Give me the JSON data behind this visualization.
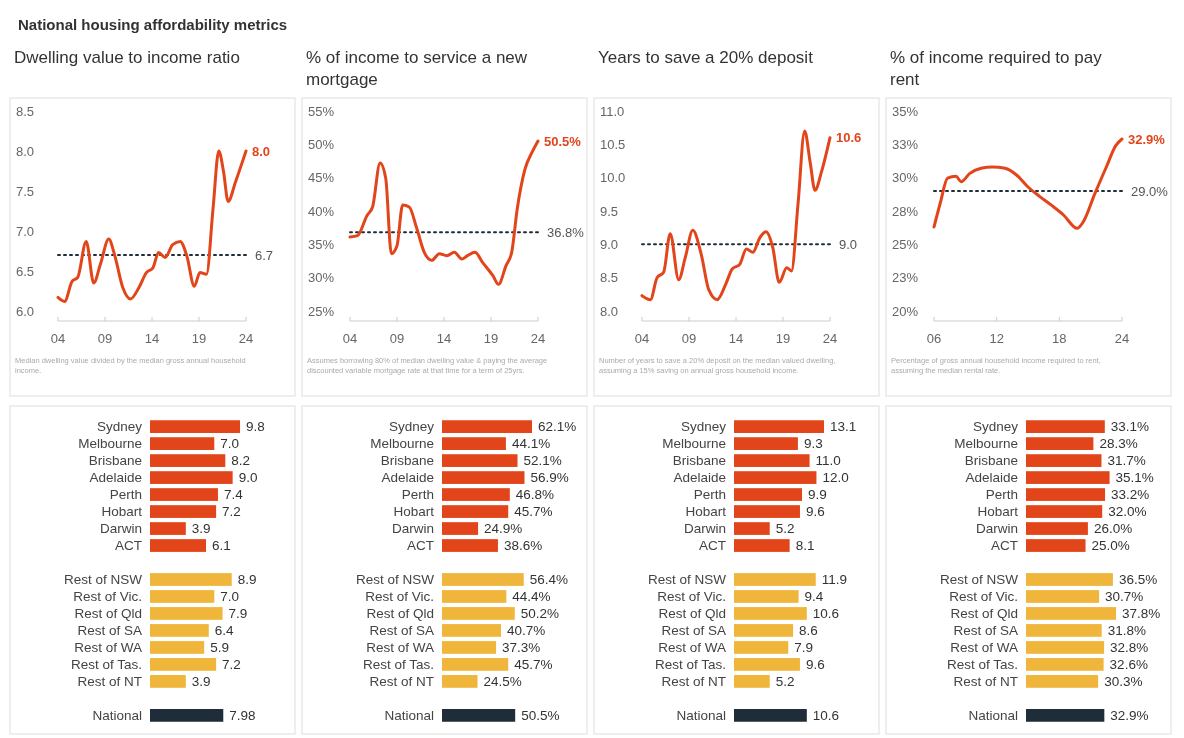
{
  "chart_data": [
    {
      "type": "other",
      "title": "National housing affordability metrics"
    },
    {
      "type": "line",
      "title": "Dwelling value to income ratio",
      "x": [
        2004,
        2004.7,
        2005.5,
        2006.1,
        2007,
        2007.8,
        2008.5,
        2009.4,
        2010,
        2010.9,
        2011.7,
        2012.6,
        2013.4,
        2014.1,
        2014.7,
        2015.4,
        2016.2,
        2017,
        2017.7,
        2018.5,
        2019.1,
        2019.8,
        2020.5,
        2021.1,
        2021.6,
        2022.1,
        2022.9,
        2024
      ],
      "series": [
        {
          "color": "#e3451b",
          "values": [
            6.17,
            6.12,
            6.37,
            6.42,
            6.87,
            6.35,
            6.58,
            6.9,
            6.71,
            6.29,
            6.15,
            6.29,
            6.48,
            6.54,
            6.73,
            6.67,
            6.83,
            6.87,
            6.69,
            6.31,
            6.48,
            6.46,
            7.29,
            8.0,
            7.75,
            7.37,
            7.62,
            8.0
          ]
        }
      ],
      "xlim": [
        2004,
        2024
      ],
      "xticks": [
        {
          "value": 2004,
          "label": "04"
        },
        {
          "value": 2009,
          "label": "09"
        },
        {
          "value": 2014,
          "label": "14"
        },
        {
          "value": 2019,
          "label": "19"
        },
        {
          "value": 2024,
          "label": "24"
        }
      ],
      "ylim": [
        6,
        8.5
      ],
      "yticks": [
        {
          "value": 6,
          "label": "6.0"
        },
        6.5,
        {
          "value": 7,
          "label": "7.0"
        },
        7.5,
        {
          "value": 8,
          "label": "8.0"
        },
        8.5
      ],
      "ref_lines": [
        {
          "axis": "y",
          "value": 6.7,
          "label": "6.7",
          "color": "#1f2d3a",
          "line_style": "dotted"
        }
      ],
      "annotations": [
        "8.0",
        "Median dwelling value divided by the median gross annual household income."
      ]
    },
    {
      "type": "line",
      "title": "% of income to service a new mortgage",
      "x": [
        2004,
        2004.8,
        2005.8,
        2006.4,
        2007.2,
        2007.8,
        2008.4,
        2009,
        2009.6,
        2010.3,
        2011.1,
        2011.9,
        2012.7,
        2013.5,
        2014.3,
        2015.1,
        2015.9,
        2016.5,
        2017.3,
        2018.1,
        2019.2,
        2019.8,
        2020.6,
        2021.2,
        2021.8,
        2022.6,
        2023.4,
        2024
      ],
      "series": [
        {
          "color": "#e3451b",
          "values": [
            36.1,
            36.3,
            39.3,
            40.6,
            47.2,
            44.9,
            33.6,
            34.8,
            40.9,
            40.6,
            37.4,
            33.8,
            32.6,
            33.6,
            33.3,
            33.8,
            32.8,
            33.3,
            33.8,
            32.3,
            30.3,
            29.0,
            31.8,
            33.8,
            40.4,
            46.2,
            48.9,
            50.5
          ]
        }
      ],
      "xlim": [
        2004,
        2024
      ],
      "xticks": [
        {
          "value": 2004,
          "label": "04"
        },
        {
          "value": 2009,
          "label": "09"
        },
        {
          "value": 2014,
          "label": "14"
        },
        {
          "value": 2019,
          "label": "19"
        },
        {
          "value": 2024,
          "label": "24"
        }
      ],
      "ylim": [
        25,
        55
      ],
      "yticks": [
        {
          "value": 25,
          "label": "25%"
        },
        {
          "value": 30,
          "label": "30%"
        },
        {
          "value": 35,
          "label": "35%"
        },
        {
          "value": 40,
          "label": "40%"
        },
        {
          "value": 45,
          "label": "45%"
        },
        {
          "value": 50,
          "label": "50%"
        },
        {
          "value": 55,
          "label": "55%"
        }
      ],
      "ref_lines": [
        {
          "axis": "y",
          "value": 36.8,
          "label": "36.8%",
          "color": "#1f2d3a",
          "line_style": "dotted"
        }
      ],
      "annotations": [
        "50.5%",
        "Assumes borrowing 80% of median dwelling value & paying the average discounted variable mortgage rate at that time for a term of 25yrs."
      ]
    },
    {
      "type": "line",
      "title": "Years to save a 20% deposit",
      "x": [
        2004,
        2004.9,
        2005.6,
        2006.3,
        2007,
        2007.9,
        2008.6,
        2009.4,
        2010.3,
        2011.1,
        2012,
        2012.9,
        2013.6,
        2014.4,
        2015.1,
        2015.8,
        2016.5,
        2017.2,
        2017.9,
        2018.6,
        2019.4,
        2019.9,
        2020.6,
        2021.3,
        2021.9,
        2022.4,
        2023.1,
        2024
      ],
      "series": [
        {
          "color": "#e3451b",
          "values": [
            8.23,
            8.17,
            8.5,
            8.58,
            9.16,
            8.47,
            8.8,
            9.21,
            8.85,
            8.32,
            8.17,
            8.4,
            8.63,
            8.7,
            8.93,
            8.88,
            9.09,
            9.19,
            8.96,
            8.43,
            8.65,
            8.6,
            9.61,
            10.7,
            10.22,
            9.81,
            10.09,
            10.6
          ]
        }
      ],
      "xlim": [
        2004,
        2024
      ],
      "xticks": [
        {
          "value": 2004,
          "label": "04"
        },
        {
          "value": 2009,
          "label": "09"
        },
        {
          "value": 2014,
          "label": "14"
        },
        {
          "value": 2019,
          "label": "19"
        },
        {
          "value": 2024,
          "label": "24"
        }
      ],
      "ylim": [
        8,
        11
      ],
      "yticks": [
        {
          "value": 8,
          "label": "8.0"
        },
        8.5,
        {
          "value": 9,
          "label": "9.0"
        },
        9.5,
        {
          "value": 10,
          "label": "10.0"
        },
        10.5,
        {
          "value": 11,
          "label": "11.0"
        }
      ],
      "ref_lines": [
        {
          "axis": "y",
          "value": 9.0,
          "label": "9.0",
          "color": "#1f2d3a",
          "line_style": "dotted"
        }
      ],
      "annotations": [
        "10.6",
        "Number of years to save a 20% deposit on the median valued dwelling, assuming a 15% saving on annual gross household income."
      ]
    },
    {
      "type": "line",
      "title": "% of income required to pay rent",
      "x": [
        2006,
        2006.6,
        2007.3,
        2008.1,
        2008.6,
        2009.4,
        2010.5,
        2011.6,
        2012.8,
        2013.9,
        2015,
        2016.1,
        2017.3,
        2018.4,
        2019.7,
        2020.3,
        2021.4,
        2022.5,
        2023.4,
        2024
      ],
      "series": [
        {
          "color": "#e3451b",
          "values": [
            26.3,
            28.1,
            29.96,
            30.1,
            29.7,
            30.3,
            30.7,
            30.8,
            30.7,
            30.2,
            29.3,
            28.6,
            27.9,
            27.2,
            26.2,
            26.7,
            28.8,
            30.8,
            32.4,
            32.9
          ]
        }
      ],
      "xlim": [
        2006,
        2024
      ],
      "xticks": [
        {
          "value": 2006,
          "label": "06"
        },
        {
          "value": 2012,
          "label": "12"
        },
        {
          "value": 2018,
          "label": "18"
        },
        {
          "value": 2024,
          "label": "24"
        }
      ],
      "ylim": [
        20,
        35
      ],
      "yticks": [
        {
          "value": 20,
          "label": "20%"
        },
        {
          "value": 22.5,
          "label": "23%"
        },
        {
          "value": 25,
          "label": "25%"
        },
        {
          "value": 27.5,
          "label": "28%"
        },
        {
          "value": 30,
          "label": "30%"
        },
        {
          "value": 32.5,
          "label": "33%"
        },
        {
          "value": 35,
          "label": "35%"
        }
      ],
      "ref_lines": [
        {
          "axis": "y",
          "value": 29.0,
          "label": "29.0%",
          "color": "#1f2d3a",
          "line_style": "dotted"
        }
      ],
      "annotations": [
        "32.9%",
        "Percentage of gross annual household income required to rent, assuming the median rental rate."
      ]
    },
    {
      "type": "bar",
      "orientation": "horizontal",
      "categories": [
        "Sydney",
        "Melbourne",
        "Brisbane",
        "Adelaide",
        "Perth",
        "Hobart",
        "Darwin",
        "ACT",
        null,
        "Rest of NSW",
        "Rest of Vic.",
        "Rest of Qld",
        "Rest of SA",
        "Rest of WA",
        "Rest of Tas.",
        "Rest of NT",
        null,
        "National"
      ],
      "values": [
        9.8,
        7.0,
        8.2,
        9.0,
        7.4,
        7.2,
        3.9,
        6.1,
        null,
        8.9,
        7.0,
        7.9,
        6.4,
        5.9,
        7.2,
        3.9,
        null,
        7.98
      ],
      "value_labels": [
        "9.8",
        "7.0",
        "8.2",
        "9.0",
        "7.4",
        "7.2",
        "3.9",
        "6.1",
        null,
        "8.9",
        "7.0",
        "7.9",
        "6.4",
        "5.9",
        "7.2",
        "3.9",
        null,
        "7.98"
      ],
      "colors": [
        "#e3451b",
        "#e3451b",
        "#e3451b",
        "#e3451b",
        "#e3451b",
        "#e3451b",
        "#e3451b",
        "#e3451b",
        null,
        "#f0b63c",
        "#f0b63c",
        "#f0b63c",
        "#f0b63c",
        "#f0b63c",
        "#f0b63c",
        "#f0b63c",
        null,
        "#1f2d3a"
      ]
    },
    {
      "type": "bar",
      "orientation": "horizontal",
      "categories": [
        "Sydney",
        "Melbourne",
        "Brisbane",
        "Adelaide",
        "Perth",
        "Hobart",
        "Darwin",
        "ACT",
        null,
        "Rest of NSW",
        "Rest of Vic.",
        "Rest of Qld",
        "Rest of SA",
        "Rest of WA",
        "Rest of Tas.",
        "Rest of NT",
        null,
        "National"
      ],
      "values": [
        62.1,
        44.1,
        52.1,
        56.9,
        46.8,
        45.7,
        24.9,
        38.6,
        null,
        56.4,
        44.4,
        50.2,
        40.7,
        37.3,
        45.7,
        24.5,
        null,
        50.5
      ],
      "value_labels": [
        "62.1%",
        "44.1%",
        "52.1%",
        "56.9%",
        "46.8%",
        "45.7%",
        "24.9%",
        "38.6%",
        null,
        "56.4%",
        "44.4%",
        "50.2%",
        "40.7%",
        "37.3%",
        "45.7%",
        "24.5%",
        null,
        "50.5%"
      ],
      "colors": [
        "#e3451b",
        "#e3451b",
        "#e3451b",
        "#e3451b",
        "#e3451b",
        "#e3451b",
        "#e3451b",
        "#e3451b",
        null,
        "#f0b63c",
        "#f0b63c",
        "#f0b63c",
        "#f0b63c",
        "#f0b63c",
        "#f0b63c",
        "#f0b63c",
        null,
        "#1f2d3a"
      ]
    },
    {
      "type": "bar",
      "orientation": "horizontal",
      "categories": [
        "Sydney",
        "Melbourne",
        "Brisbane",
        "Adelaide",
        "Perth",
        "Hobart",
        "Darwin",
        "ACT",
        null,
        "Rest of NSW",
        "Rest of Vic.",
        "Rest of Qld",
        "Rest of SA",
        "Rest of WA",
        "Rest of Tas.",
        "Rest of NT",
        null,
        "National"
      ],
      "values": [
        13.1,
        9.3,
        11.0,
        12.0,
        9.9,
        9.6,
        5.2,
        8.1,
        null,
        11.9,
        9.4,
        10.6,
        8.6,
        7.9,
        9.6,
        5.2,
        null,
        10.6
      ],
      "value_labels": [
        "13.1",
        "9.3",
        "11.0",
        "12.0",
        "9.9",
        "9.6",
        "5.2",
        "8.1",
        null,
        "11.9",
        "9.4",
        "10.6",
        "8.6",
        "7.9",
        "9.6",
        "5.2",
        null,
        "10.6"
      ],
      "colors": [
        "#e3451b",
        "#e3451b",
        "#e3451b",
        "#e3451b",
        "#e3451b",
        "#e3451b",
        "#e3451b",
        "#e3451b",
        null,
        "#f0b63c",
        "#f0b63c",
        "#f0b63c",
        "#f0b63c",
        "#f0b63c",
        "#f0b63c",
        "#f0b63c",
        null,
        "#1f2d3a"
      ]
    },
    {
      "type": "bar",
      "orientation": "horizontal",
      "categories": [
        "Sydney",
        "Melbourne",
        "Brisbane",
        "Adelaide",
        "Perth",
        "Hobart",
        "Darwin",
        "ACT",
        null,
        "Rest of NSW",
        "Rest of Vic.",
        "Rest of Qld",
        "Rest of SA",
        "Rest of WA",
        "Rest of Tas.",
        "Rest of NT",
        null,
        "National"
      ],
      "values": [
        33.1,
        28.3,
        31.7,
        35.1,
        33.2,
        32.0,
        26.0,
        25.0,
        null,
        36.5,
        30.7,
        37.8,
        31.8,
        32.8,
        32.6,
        30.3,
        null,
        32.9
      ],
      "value_labels": [
        "33.1%",
        "28.3%",
        "31.7%",
        "35.1%",
        "33.2%",
        "32.0%",
        "26.0%",
        "25.0%",
        null,
        "36.5%",
        "30.7%",
        "37.8%",
        "31.8%",
        "32.8%",
        "32.6%",
        "30.3%",
        null,
        "32.9%"
      ],
      "colors": [
        "#e3451b",
        "#e3451b",
        "#e3451b",
        "#e3451b",
        "#e3451b",
        "#e3451b",
        "#e3451b",
        "#e3451b",
        null,
        "#f0b63c",
        "#f0b63c",
        "#f0b63c",
        "#f0b63c",
        "#f0b63c",
        "#f0b63c",
        "#f0b63c",
        null,
        "#1f2d3a"
      ]
    }
  ]
}
